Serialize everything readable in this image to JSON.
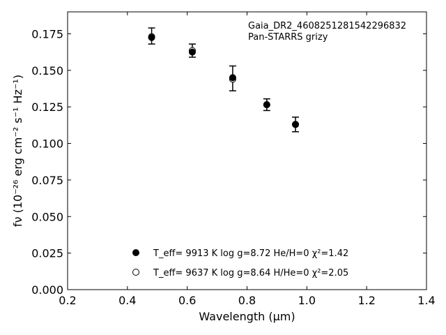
{
  "chart_data": {
    "type": "scatter",
    "xlabel": "Wavelength (μm)",
    "ylabel": "fν (10⁻²⁶ erg cm⁻² s⁻¹ Hz⁻¹)",
    "xlim": [
      0.2,
      1.4
    ],
    "ylim": [
      0.0,
      0.19
    ],
    "x_ticks": [
      "0.2",
      "0.4",
      "0.6",
      "0.8",
      "1.0",
      "1.2",
      "1.4"
    ],
    "y_ticks": [
      "0.000",
      "0.025",
      "0.050",
      "0.075",
      "0.100",
      "0.125",
      "0.150",
      "0.175"
    ],
    "grid": false,
    "annotation": [
      "Gaia_DR2_4608251281542296832",
      "Pan-STARRS grizy"
    ],
    "observed": {
      "x": [
        0.481,
        0.617,
        0.752,
        0.866,
        0.962
      ],
      "y": [
        0.1735,
        0.1635,
        0.1445,
        0.1265,
        0.113
      ],
      "err": [
        0.0055,
        0.0045,
        0.0085,
        0.004,
        0.005
      ]
    },
    "series": [
      {
        "marker": "filled",
        "legend": "T_eff=  9913 K  log g=8.72  He/H=0  χ²=1.42",
        "x": [
          0.481,
          0.617,
          0.752,
          0.866,
          0.962
        ],
        "y": [
          0.1725,
          0.1625,
          0.145,
          0.1265,
          0.113
        ]
      },
      {
        "marker": "open",
        "legend": "T_eff=  9637 K  log g=8.64  H/He=0  χ²=2.05",
        "x": [
          0.481,
          0.617,
          0.752,
          0.866,
          0.962
        ],
        "y": [
          0.173,
          0.1635,
          0.144,
          0.1265,
          0.113
        ]
      }
    ],
    "legend_position": "bottom-center"
  }
}
